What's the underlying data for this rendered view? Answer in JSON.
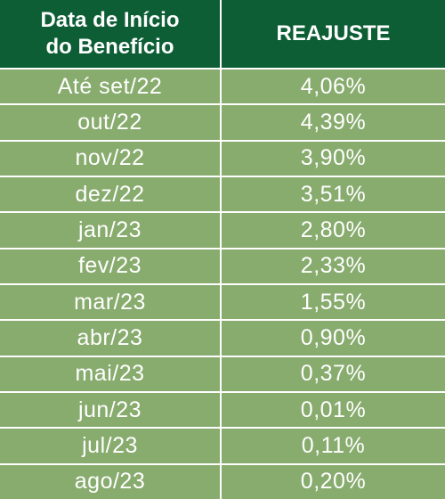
{
  "table": {
    "headers": {
      "date": "Data de Início\ndo Benefício",
      "adjustment": "REAJUSTE"
    },
    "rows": [
      {
        "date": "Até set/22",
        "adjustment": "4,06%"
      },
      {
        "date": "out/22",
        "adjustment": "4,39%"
      },
      {
        "date": "nov/22",
        "adjustment": "3,90%"
      },
      {
        "date": "dez/22",
        "adjustment": "3,51%"
      },
      {
        "date": "jan/23",
        "adjustment": "2,80%"
      },
      {
        "date": "fev/23",
        "adjustment": "2,33%"
      },
      {
        "date": "mar/23",
        "adjustment": "1,55%"
      },
      {
        "date": "abr/23",
        "adjustment": "0,90%"
      },
      {
        "date": "mai/23",
        "adjustment": "0,37%"
      },
      {
        "date": "jun/23",
        "adjustment": "0,01%"
      },
      {
        "date": "jul/23",
        "adjustment": "0,11%"
      },
      {
        "date": "ago/23",
        "adjustment": "0,20%"
      }
    ]
  },
  "colors": {
    "header_bg": "#0d5e35",
    "row_bg": "#88ab6e",
    "text": "#ffffff"
  }
}
